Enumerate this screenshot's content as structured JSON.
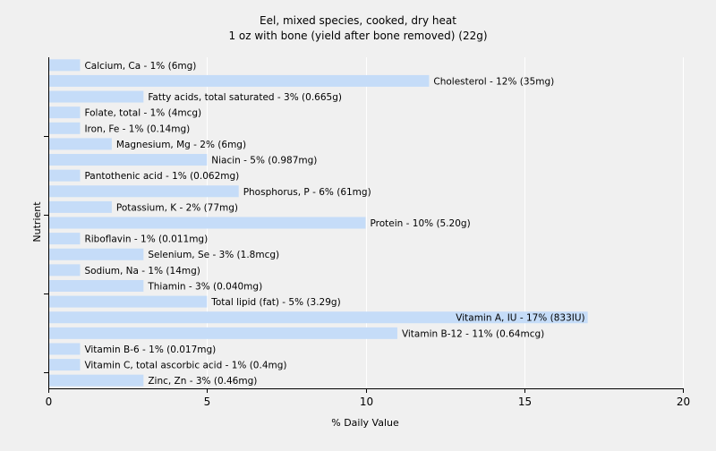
{
  "chart_data": {
    "type": "bar",
    "orientation": "horizontal",
    "title": "Eel, mixed species, cooked, dry heat",
    "subtitle": "1 oz with bone (yield after bone removed) (22g)",
    "xlabel": "% Daily Value",
    "ylabel": "Nutrient",
    "xlim": [
      0,
      20
    ],
    "xticks": [
      0,
      5,
      10,
      15,
      20
    ],
    "grid": true,
    "bar_color": "#c5dcf8",
    "categories": [
      "Calcium, Ca",
      "Cholesterol",
      "Fatty acids, total saturated",
      "Folate, total",
      "Iron, Fe",
      "Magnesium, Mg",
      "Niacin",
      "Pantothenic acid",
      "Phosphorus, P",
      "Potassium, K",
      "Protein",
      "Riboflavin",
      "Selenium, Se",
      "Sodium, Na",
      "Thiamin",
      "Total lipid (fat)",
      "Vitamin A, IU",
      "Vitamin B-12",
      "Vitamin B-6",
      "Vitamin C, total ascorbic acid",
      "Zinc, Zn"
    ],
    "values": [
      1,
      12,
      3,
      1,
      1,
      2,
      5,
      1,
      6,
      2,
      10,
      1,
      3,
      1,
      3,
      5,
      17,
      11,
      1,
      1,
      3
    ],
    "labels": [
      "Calcium, Ca - 1% (6mg)",
      "Cholesterol - 12% (35mg)",
      "Fatty acids, total saturated - 3% (0.665g)",
      "Folate, total - 1% (4mcg)",
      "Iron, Fe - 1% (0.14mg)",
      "Magnesium, Mg - 2% (6mg)",
      "Niacin - 5% (0.987mg)",
      "Pantothenic acid - 1% (0.062mg)",
      "Phosphorus, P - 6% (61mg)",
      "Potassium, K - 2% (77mg)",
      "Protein - 10% (5.20g)",
      "Riboflavin - 1% (0.011mg)",
      "Selenium, Se - 3% (1.8mcg)",
      "Sodium, Na - 1% (14mg)",
      "Thiamin - 3% (0.040mg)",
      "Total lipid (fat) - 5% (3.29g)",
      "Vitamin A, IU - 17% (833IU)",
      "Vitamin B-12 - 11% (0.64mcg)",
      "Vitamin B-6 - 1% (0.017mg)",
      "Vitamin C, total ascorbic acid - 1% (0.4mg)",
      "Zinc, Zn - 3% (0.46mg)"
    ]
  }
}
